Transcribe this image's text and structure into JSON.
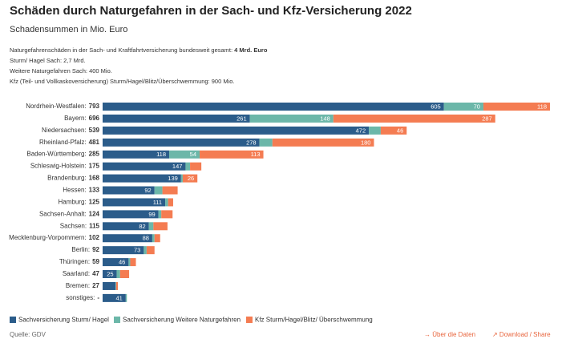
{
  "chart_data": {
    "type": "stacked-barh",
    "title": "Schäden durch Naturgefahren in der Sach- und Kfz-Versicherung 2022",
    "subtitle": "Schadensummen in Mio. Euro",
    "notes": [
      {
        "text": "Naturgefahrenschäden in der Sach- und Kraftfahrtversicherung bundesweit gesamt: ",
        "bold": "4 Mrd. Euro"
      },
      {
        "text": "Sturm/ Hagel Sach: 2,7 Mrd."
      },
      {
        "text": "Weitere Naturgefahren Sach: 400 Mio."
      },
      {
        "text": "Kfz (Teil- und Vollkaskoversicherung) Sturm/Hagel/Blitz/Überschwemmung: 900 Mio."
      }
    ],
    "categories": [
      "Nordrhein-Westfalen:",
      "Bayern:",
      "Niedersachsen:",
      "Rheinland-Pfalz:",
      "Baden-Württemberg:",
      "Schleswig-Holstein:",
      "Brandenburg:",
      "Hessen:",
      "Hamburg:",
      "Sachsen-Anhalt:",
      "Sachsen:",
      "Mecklenburg-Vorpommern:",
      "Berlin:",
      "Thüringen:",
      "Saarland:",
      "Bremen:",
      "sonstiges:"
    ],
    "totals": {
      "values": [
        793,
        696,
        539,
        481,
        285,
        175,
        168,
        133,
        125,
        124,
        115,
        102,
        92,
        59,
        47,
        27,
        null
      ],
      "value_labels": [
        "793",
        "696",
        "539",
        "481",
        "285",
        "175",
        "168",
        "133",
        "125",
        "124",
        "115",
        "102",
        "92",
        "59",
        "47",
        "27",
        "-"
      ]
    },
    "xlim": [
      0,
      793
    ],
    "series": [
      {
        "name": "Sachversicherung Sturm/ Hagel",
        "color": "#2b5c8a",
        "values": [
          605,
          261,
          472,
          278,
          118,
          147,
          139,
          92,
          111,
          99,
          82,
          88,
          73,
          46,
          25,
          23,
          41
        ],
        "value_labels": [
          "605",
          "261",
          "472",
          "278",
          "118",
          "147",
          "139",
          "92",
          "111",
          "99",
          "82",
          "88",
          "73",
          "46",
          "25",
          null,
          "41"
        ]
      },
      {
        "name": "Sachversicherung Weitere Naturgefahren",
        "color": "#6cb7a9",
        "values": [
          70,
          148,
          21,
          23,
          54,
          8,
          3,
          14,
          5,
          5,
          8,
          4,
          5,
          3,
          6,
          1,
          2
        ],
        "value_labels": [
          "70",
          "148",
          null,
          null,
          "54",
          null,
          null,
          null,
          null,
          null,
          null,
          null,
          null,
          null,
          null,
          null,
          null
        ]
      },
      {
        "name": "Kfz Sturm/Hagel/Blitz/ Überschwemmung",
        "color": "#f47c52",
        "values": [
          118,
          287,
          46,
          180,
          113,
          20,
          26,
          27,
          9,
          20,
          25,
          10,
          14,
          10,
          16,
          3,
          0
        ],
        "value_labels": [
          "118",
          "287",
          "46",
          "180",
          "113",
          null,
          "26",
          null,
          null,
          null,
          null,
          null,
          null,
          null,
          null,
          null,
          null
        ]
      }
    ],
    "source": "Quelle: GDV",
    "links": [
      "→ Über die Daten",
      "↗ Download / Share"
    ]
  }
}
